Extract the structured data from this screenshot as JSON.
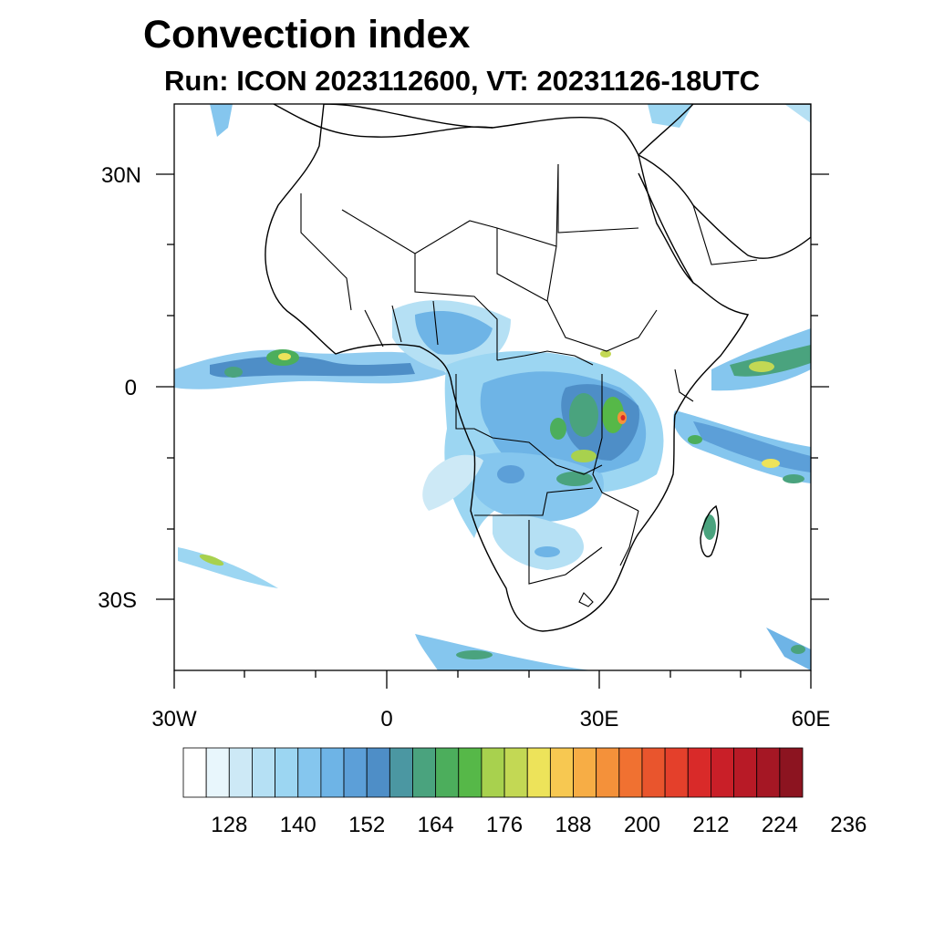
{
  "title": "Convection index",
  "subtitle": "Run: ICON 2023112600,  VT: 20231126-18UTC",
  "map": {
    "lon_range": [
      -30,
      60
    ],
    "lat_range": [
      -40,
      40
    ],
    "lat_ticks": [
      {
        "value": 30,
        "label": "30N"
      },
      {
        "value": 0,
        "label": "0"
      },
      {
        "value": -30,
        "label": "30S"
      }
    ],
    "lon_ticks": [
      {
        "value": -30,
        "label": "30W"
      },
      {
        "value": 0,
        "label": "0"
      },
      {
        "value": 30,
        "label": "30E"
      },
      {
        "value": 60,
        "label": "60E"
      }
    ]
  },
  "colorbar": {
    "colors": [
      "#ffffff",
      "#e8f6fc",
      "#cde9f6",
      "#b5e0f4",
      "#9cd6f2",
      "#85c6ee",
      "#6eb4e6",
      "#5c9fd8",
      "#4e8ec7",
      "#4b97a2",
      "#4aa37e",
      "#4cae5c",
      "#56b848",
      "#a8d14e",
      "#c3d854",
      "#ede35a",
      "#f7c851",
      "#f7ad45",
      "#f4913a",
      "#f07131",
      "#e9552d",
      "#e4402b",
      "#d92a29",
      "#c91f28",
      "#b81a26",
      "#a51724",
      "#8c1420"
    ],
    "tick_labels": [
      "128",
      "140",
      "152",
      "164",
      "176",
      "188",
      "200",
      "212",
      "224",
      "236"
    ]
  }
}
